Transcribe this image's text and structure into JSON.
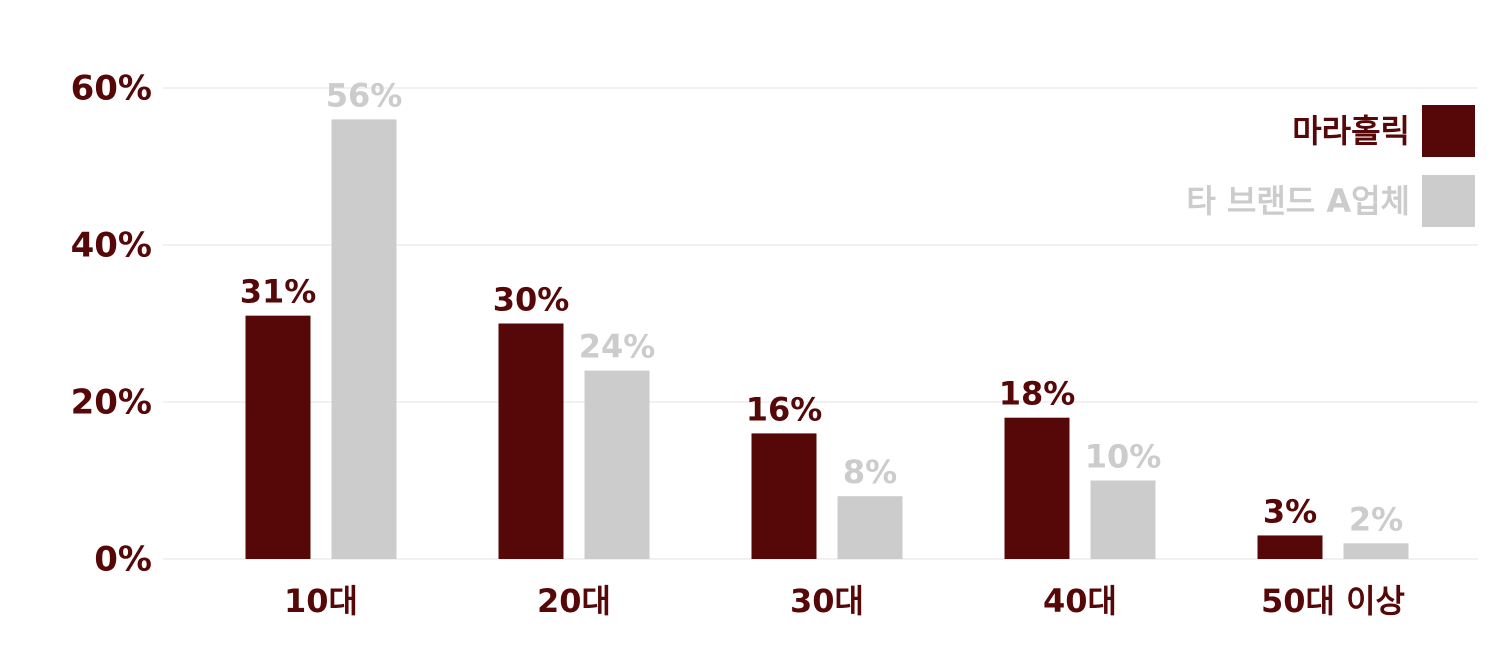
{
  "chart_data": {
    "type": "bar",
    "categories": [
      "10대",
      "20대",
      "30대",
      "40대",
      "50대 이상"
    ],
    "series": [
      {
        "name": "마라홀릭",
        "color": "#560707",
        "values": [
          31,
          30,
          16,
          18,
          3
        ],
        "value_labels": [
          "31%",
          "30%",
          "16%",
          "18%",
          "3%"
        ]
      },
      {
        "name": "타 브랜드 A업체",
        "color": "#cccccc",
        "values": [
          56,
          24,
          8,
          10,
          2
        ],
        "value_labels": [
          "56%",
          "24%",
          "8%",
          "10%",
          "2%"
        ]
      }
    ],
    "ylim": [
      0,
      60
    ],
    "yticks": [
      {
        "value": 0,
        "label": "0%"
      },
      {
        "value": 20,
        "label": "20%"
      },
      {
        "value": 40,
        "label": "40%"
      },
      {
        "value": 60,
        "label": "60%"
      }
    ],
    "grid": true,
    "legend": "top-right"
  }
}
